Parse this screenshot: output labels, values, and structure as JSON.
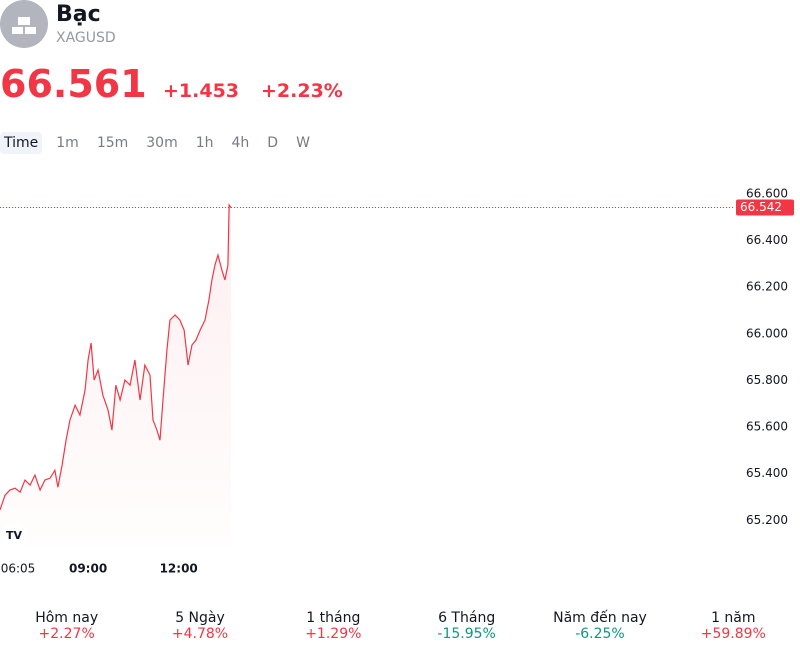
{
  "header": {
    "title": "Bạc",
    "symbol": "XAGUSD",
    "price": "66.561",
    "change": "+1.453",
    "change_percent": "+2.23%",
    "color": "#f23645"
  },
  "timeframes": {
    "items": [
      "Time",
      "1m",
      "15m",
      "30m",
      "1h",
      "4h",
      "D",
      "W"
    ],
    "selected": 0
  },
  "chart_data": {
    "type": "line",
    "color": "#f23645",
    "x": [
      6.08,
      6.25,
      6.41,
      6.58,
      6.75,
      6.91,
      7.08,
      7.24,
      7.41,
      7.57,
      7.74,
      7.9,
      8.0,
      8.14,
      8.27,
      8.4,
      8.57,
      8.73,
      8.9,
      9.0,
      9.1,
      9.2,
      9.33,
      9.49,
      9.66,
      9.79,
      9.92,
      10.06,
      10.22,
      10.39,
      10.55,
      10.72,
      10.88,
      11.05,
      11.15,
      11.28,
      11.38,
      11.48,
      11.61,
      11.71,
      11.88,
      12.04,
      12.18,
      12.31,
      12.44,
      12.57,
      12.71,
      12.87,
      13.0,
      13.1,
      13.2,
      13.3,
      13.43,
      13.53,
      13.63,
      13.67,
      13.73
    ],
    "values": [
      65.244,
      65.308,
      65.33,
      65.338,
      65.321,
      65.373,
      65.351,
      65.394,
      65.33,
      65.373,
      65.381,
      65.415,
      65.342,
      65.437,
      65.544,
      65.63,
      65.694,
      65.652,
      65.759,
      65.888,
      65.961,
      65.802,
      65.845,
      65.737,
      65.673,
      65.587,
      65.78,
      65.716,
      65.802,
      65.78,
      65.888,
      65.716,
      65.866,
      65.823,
      65.63,
      65.587,
      65.544,
      65.716,
      65.93,
      66.059,
      66.081,
      66.059,
      66.016,
      65.866,
      65.952,
      65.973,
      66.016,
      66.059,
      66.145,
      66.231,
      66.295,
      66.338,
      66.274,
      66.231,
      66.295,
      66.553,
      66.542
    ],
    "xlim": [
      6.0833,
      30.42
    ],
    "xticks": [
      {
        "value": 6.0833,
        "label": "06:05"
      },
      {
        "value": 9,
        "label": "09:00"
      },
      {
        "value": 12,
        "label": "12:00"
      }
    ],
    "ylim": [
      65.09,
      66.66
    ],
    "yticks": [
      {
        "value": 65.2,
        "label": "65.200"
      },
      {
        "value": 65.4,
        "label": "65.400"
      },
      {
        "value": 65.6,
        "label": "65.600"
      },
      {
        "value": 65.8,
        "label": "65.800"
      },
      {
        "value": 66.0,
        "label": "66.000"
      },
      {
        "value": 66.2,
        "label": "66.200"
      },
      {
        "value": 66.4,
        "label": "66.400"
      },
      {
        "value": 66.6,
        "label": "66.600"
      }
    ],
    "last_price": 66.542
  },
  "performance": [
    {
      "label": "Hôm nay",
      "value": "+2.27%",
      "color": "#f23645"
    },
    {
      "label": "5 Ngày",
      "value": "+4.78%",
      "color": "#f23645"
    },
    {
      "label": "1 tháng",
      "value": "+1.29%",
      "color": "#f23645"
    },
    {
      "label": "6 Tháng",
      "value": "-15.95%",
      "color": "#089981"
    },
    {
      "label": "Năm đến nay",
      "value": "-6.25%",
      "color": "#089981"
    },
    {
      "label": "1 năm",
      "value": "+59.89%",
      "color": "#f23645"
    }
  ]
}
